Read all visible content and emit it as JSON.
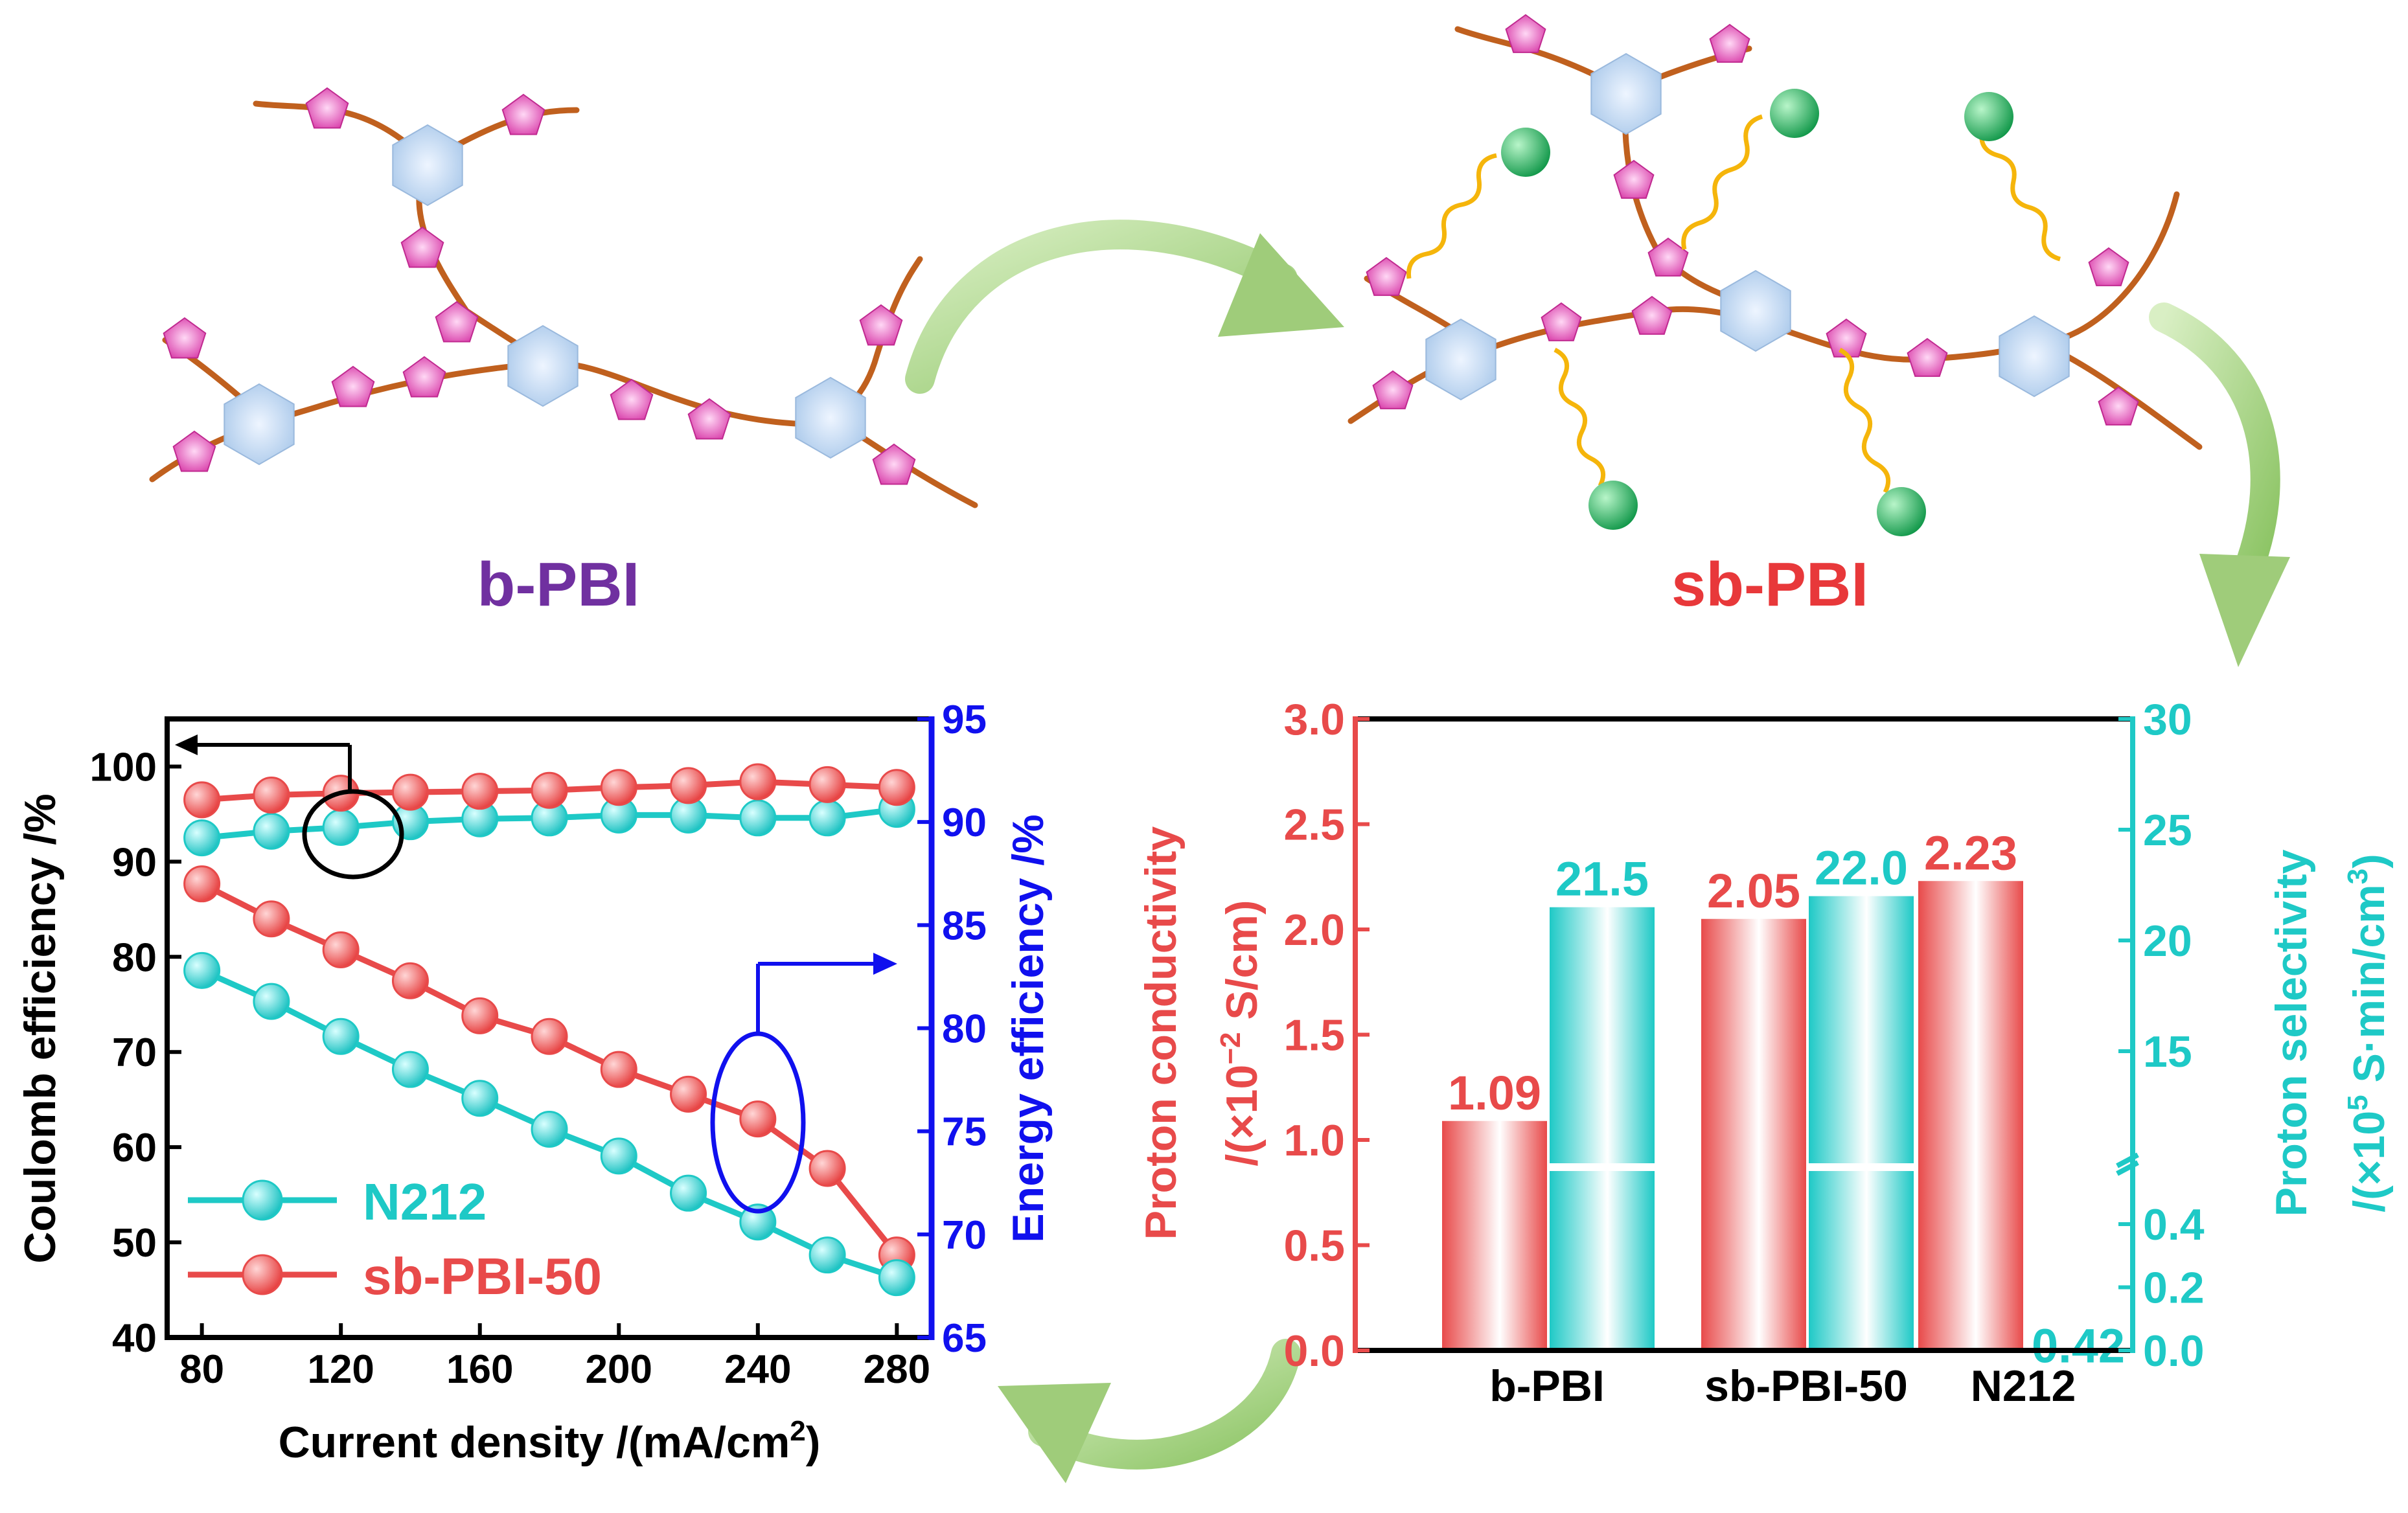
{
  "labels": {
    "b_pbi": "b-PBI",
    "sb_pbi": "sb-PBI"
  },
  "colors": {
    "red": "#e84a4a",
    "cyan": "#1ec9c6",
    "blue": "#1010ee",
    "purple": "#7030a0",
    "chain": "#c0601e",
    "hexagon": "#b9d3ee",
    "pentagon": "#e040b0",
    "arrow": "#9fcc7a",
    "sulfonic": "#22aa55",
    "spacer": "#f5b50b",
    "legend_cyan": "#16c3c3",
    "legend_red": "#e84a4a"
  },
  "chart_data": [
    {
      "type": "line",
      "xlabel": "Current density /(mA/cm",
      "xlabel_sup": "2",
      "xlabel_tail": ")",
      "ylabel": "Coulomb efficiency /%",
      "ylabel_right": "Energy efficiency /%",
      "xlim": [
        70,
        290
      ],
      "ylim": [
        40,
        105
      ],
      "ylim_right": [
        65,
        95
      ],
      "xticks": [
        "80",
        "120",
        "160",
        "200",
        "240",
        "280"
      ],
      "xtick_values": [
        80,
        120,
        160,
        200,
        240,
        280
      ],
      "yticks": [
        "40",
        "50",
        "60",
        "70",
        "80",
        "90",
        "100"
      ],
      "ytick_values": [
        40,
        50,
        60,
        70,
        80,
        90,
        100
      ],
      "yticks_right": [
        "65",
        "70",
        "75",
        "80",
        "85",
        "90",
        "95"
      ],
      "ytick_right_values": [
        65,
        70,
        75,
        80,
        85,
        90,
        95
      ],
      "x": [
        80,
        100,
        120,
        140,
        160,
        180,
        200,
        220,
        240,
        260,
        280
      ],
      "series": [
        {
          "name": "N212",
          "axis": "left",
          "color": "#1ec9c6",
          "values": [
            92.5,
            93.2,
            93.6,
            94.2,
            94.5,
            94.6,
            94.9,
            94.9,
            94.6,
            94.6,
            95.5
          ]
        },
        {
          "name": "sb-PBI-50",
          "axis": "left",
          "color": "#e84a4a",
          "values": [
            96.5,
            97.0,
            97.2,
            97.3,
            97.4,
            97.5,
            97.8,
            98.0,
            98.4,
            98.1,
            97.8
          ]
        },
        {
          "name": "sb-PBI-50",
          "axis": "right",
          "color": "#e84a4a",
          "values": [
            87.0,
            85.3,
            83.8,
            82.3,
            80.6,
            79.6,
            78.0,
            76.8,
            75.6,
            73.2,
            69.0
          ]
        },
        {
          "name": "N212",
          "axis": "right",
          "color": "#1ec9c6",
          "values": [
            82.8,
            81.3,
            79.6,
            78.0,
            76.6,
            75.1,
            73.8,
            72.0,
            70.6,
            69.0,
            67.9
          ]
        }
      ],
      "legend": [
        {
          "name": "N212",
          "color": "#1ec9c6"
        },
        {
          "name": "sb-PBI-50",
          "color": "#e84a4a"
        }
      ],
      "legend_position": "bottom-left"
    },
    {
      "type": "bar",
      "categories": [
        "b-PBI",
        "sb-PBI-50",
        "N212"
      ],
      "ylabel": "Proton conductivity",
      "ylabel_unit": "/(×10",
      "ylabel_unit_sup": "−2",
      "ylabel_unit_tail": " S/cm)",
      "ylabel_right": "Proton selectivity",
      "ylabel_right_unit": "/(×10",
      "ylabel_right_unit_sup": "5",
      "ylabel_right_unit_tail": " S·min/cm",
      "ylabel_right_unit_sup2": "3",
      "ylabel_right_unit_close": ")",
      "ylim": [
        0,
        3.0
      ],
      "yticks": [
        "0.0",
        "0.5",
        "1.0",
        "1.5",
        "2.0",
        "2.5",
        "3.0"
      ],
      "ytick_values": [
        0,
        0.5,
        1.0,
        1.5,
        2.0,
        2.5,
        3.0
      ],
      "right_axis_scale": "broken",
      "yticks_right": [
        "0.0",
        "0.2",
        "0.4",
        "15",
        "20",
        "25",
        "30"
      ],
      "ytick_right_values": [
        0,
        0.2,
        0.4,
        15,
        20,
        25,
        30
      ],
      "series": [
        {
          "name": "Proton conductivity",
          "axis": "left",
          "color": "#e84a4a",
          "values": [
            1.09,
            2.05,
            2.23
          ],
          "labels": [
            "1.09",
            "2.05",
            "2.23"
          ]
        },
        {
          "name": "Proton selectivity",
          "axis": "right",
          "color": "#1ec9c6",
          "values": [
            21.5,
            22.0,
            0.42
          ],
          "labels": [
            "21.5",
            "22.0",
            "0.42"
          ]
        }
      ]
    }
  ]
}
